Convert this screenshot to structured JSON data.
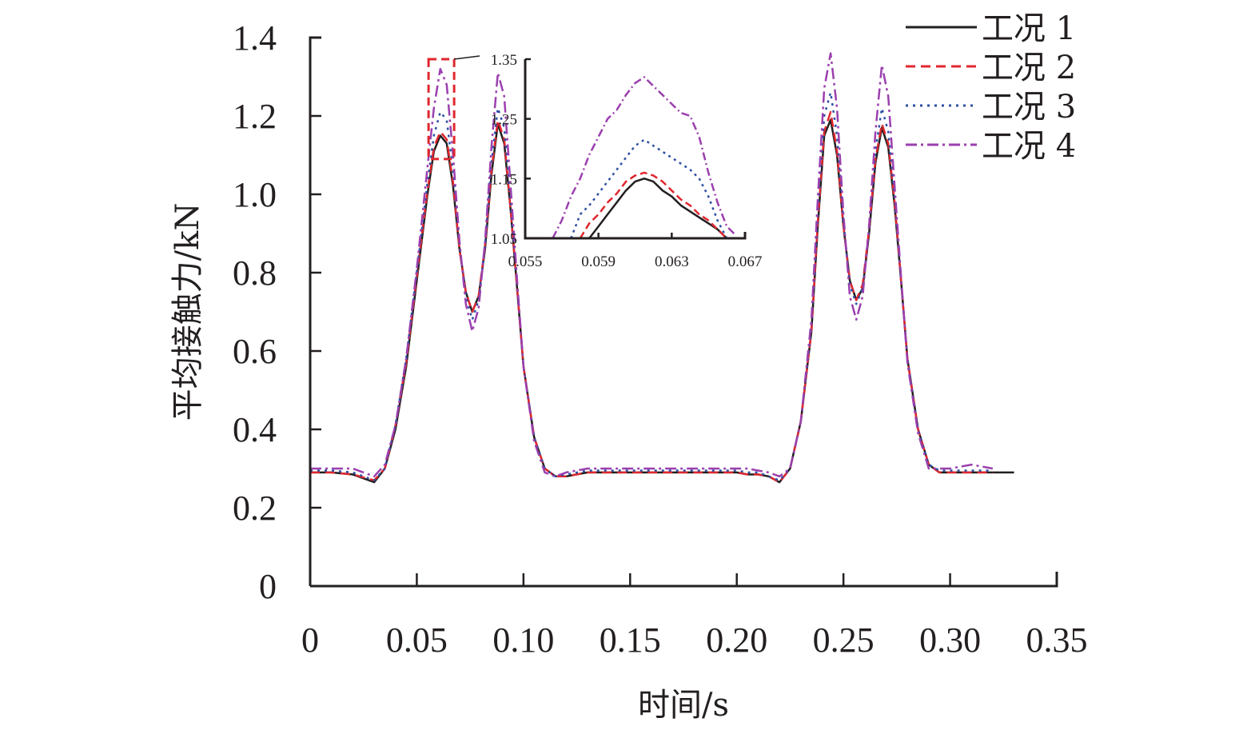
{
  "chart_data": {
    "type": "line",
    "title": "",
    "xlabel": "时间/s",
    "ylabel": "平均接触力/kN",
    "xlim": [
      0,
      0.35
    ],
    "ylim": [
      0,
      1.4
    ],
    "x_ticks": [
      "0",
      "0.05",
      "0.10",
      "0.15",
      "0.20",
      "0.25",
      "0.30",
      "0.35"
    ],
    "x_tick_values": [
      0,
      0.05,
      0.1,
      0.15,
      0.2,
      0.25,
      0.3,
      0.35
    ],
    "y_ticks": [
      "0",
      "0.2",
      "0.4",
      "0.6",
      "0.8",
      "1.0",
      "1.2",
      "1.4"
    ],
    "y_tick_values": [
      0,
      0.2,
      0.4,
      0.6,
      0.8,
      1.0,
      1.2,
      1.4
    ],
    "grid": false,
    "legend_position": "top-right",
    "series": [
      {
        "name": "工况 1",
        "color": "#231f20",
        "dash": "solid",
        "x": [
          0,
          0.01,
          0.02,
          0.03,
          0.035,
          0.04,
          0.045,
          0.05,
          0.055,
          0.058,
          0.061,
          0.064,
          0.067,
          0.07,
          0.073,
          0.076,
          0.079,
          0.082,
          0.085,
          0.088,
          0.091,
          0.094,
          0.097,
          0.1,
          0.105,
          0.11,
          0.115,
          0.12,
          0.13,
          0.15,
          0.18,
          0.2,
          0.205,
          0.21,
          0.215,
          0.22,
          0.225,
          0.23,
          0.235,
          0.238,
          0.241,
          0.244,
          0.247,
          0.25,
          0.253,
          0.256,
          0.259,
          0.262,
          0.265,
          0.268,
          0.271,
          0.274,
          0.277,
          0.28,
          0.285,
          0.29,
          0.295,
          0.3,
          0.31,
          0.32,
          0.33
        ],
        "y": [
          0.29,
          0.29,
          0.285,
          0.265,
          0.3,
          0.4,
          0.56,
          0.78,
          1.0,
          1.11,
          1.15,
          1.13,
          1.02,
          0.86,
          0.75,
          0.7,
          0.74,
          0.86,
          1.05,
          1.18,
          1.13,
          0.96,
          0.76,
          0.56,
          0.38,
          0.3,
          0.28,
          0.28,
          0.29,
          0.29,
          0.29,
          0.29,
          0.285,
          0.285,
          0.28,
          0.265,
          0.3,
          0.42,
          0.65,
          0.92,
          1.15,
          1.19,
          1.1,
          0.92,
          0.78,
          0.73,
          0.76,
          0.9,
          1.08,
          1.17,
          1.12,
          0.97,
          0.78,
          0.58,
          0.4,
          0.31,
          0.29,
          0.29,
          0.29,
          0.29,
          0.29
        ]
      },
      {
        "name": "工况 2",
        "color": "#e0272e",
        "dash": "dashed",
        "x": [
          0,
          0.01,
          0.02,
          0.03,
          0.035,
          0.04,
          0.045,
          0.05,
          0.055,
          0.058,
          0.061,
          0.064,
          0.067,
          0.07,
          0.073,
          0.076,
          0.079,
          0.082,
          0.085,
          0.088,
          0.091,
          0.094,
          0.097,
          0.1,
          0.105,
          0.11,
          0.115,
          0.12,
          0.13,
          0.15,
          0.18,
          0.2,
          0.205,
          0.21,
          0.215,
          0.22,
          0.225,
          0.23,
          0.235,
          0.238,
          0.241,
          0.244,
          0.247,
          0.25,
          0.253,
          0.256,
          0.259,
          0.262,
          0.265,
          0.268,
          0.271,
          0.274,
          0.277,
          0.28,
          0.285,
          0.29,
          0.295,
          0.3,
          0.31,
          0.32
        ],
        "y": [
          0.29,
          0.29,
          0.285,
          0.27,
          0.3,
          0.41,
          0.57,
          0.79,
          1.01,
          1.12,
          1.16,
          1.14,
          1.03,
          0.86,
          0.75,
          0.7,
          0.74,
          0.87,
          1.06,
          1.19,
          1.14,
          0.96,
          0.76,
          0.56,
          0.38,
          0.3,
          0.28,
          0.28,
          0.29,
          0.29,
          0.29,
          0.29,
          0.285,
          0.285,
          0.28,
          0.265,
          0.3,
          0.42,
          0.65,
          0.93,
          1.16,
          1.21,
          1.11,
          0.92,
          0.78,
          0.73,
          0.77,
          0.91,
          1.09,
          1.18,
          1.13,
          0.98,
          0.78,
          0.58,
          0.4,
          0.31,
          0.29,
          0.29,
          0.29,
          0.29
        ]
      },
      {
        "name": "工况 3",
        "color": "#2e4fa3",
        "dash": "dotted",
        "x": [
          0,
          0.01,
          0.02,
          0.03,
          0.035,
          0.04,
          0.045,
          0.05,
          0.055,
          0.058,
          0.061,
          0.064,
          0.067,
          0.07,
          0.073,
          0.076,
          0.079,
          0.082,
          0.085,
          0.088,
          0.091,
          0.094,
          0.097,
          0.1,
          0.105,
          0.11,
          0.115,
          0.12,
          0.13,
          0.15,
          0.18,
          0.2,
          0.205,
          0.21,
          0.215,
          0.22,
          0.225,
          0.23,
          0.235,
          0.238,
          0.241,
          0.244,
          0.247,
          0.25,
          0.253,
          0.256,
          0.259,
          0.262,
          0.265,
          0.268,
          0.271,
          0.274,
          0.277,
          0.28,
          0.285,
          0.29,
          0.295,
          0.3,
          0.31,
          0.32
        ],
        "y": [
          0.295,
          0.295,
          0.29,
          0.27,
          0.3,
          0.41,
          0.58,
          0.8,
          1.03,
          1.15,
          1.21,
          1.19,
          1.06,
          0.87,
          0.74,
          0.68,
          0.73,
          0.87,
          1.08,
          1.22,
          1.17,
          0.98,
          0.77,
          0.56,
          0.38,
          0.3,
          0.28,
          0.285,
          0.295,
          0.295,
          0.295,
          0.295,
          0.29,
          0.29,
          0.28,
          0.27,
          0.3,
          0.42,
          0.66,
          0.95,
          1.2,
          1.26,
          1.15,
          0.93,
          0.77,
          0.72,
          0.76,
          0.91,
          1.11,
          1.22,
          1.16,
          0.99,
          0.78,
          0.58,
          0.4,
          0.31,
          0.295,
          0.295,
          0.295,
          0.295
        ]
      },
      {
        "name": "工况 4",
        "color": "#9b3fae",
        "dash": "dashdot",
        "x": [
          0,
          0.01,
          0.02,
          0.03,
          0.035,
          0.04,
          0.045,
          0.05,
          0.055,
          0.058,
          0.061,
          0.064,
          0.067,
          0.07,
          0.073,
          0.076,
          0.079,
          0.082,
          0.085,
          0.088,
          0.091,
          0.094,
          0.097,
          0.1,
          0.105,
          0.11,
          0.115,
          0.12,
          0.13,
          0.15,
          0.18,
          0.2,
          0.205,
          0.21,
          0.215,
          0.22,
          0.225,
          0.23,
          0.235,
          0.238,
          0.241,
          0.244,
          0.247,
          0.25,
          0.253,
          0.256,
          0.259,
          0.262,
          0.265,
          0.268,
          0.271,
          0.274,
          0.277,
          0.28,
          0.285,
          0.29,
          0.295,
          0.3,
          0.31,
          0.32
        ],
        "y": [
          0.3,
          0.3,
          0.3,
          0.28,
          0.31,
          0.41,
          0.58,
          0.81,
          1.07,
          1.22,
          1.32,
          1.28,
          1.1,
          0.88,
          0.72,
          0.65,
          0.71,
          0.88,
          1.12,
          1.31,
          1.25,
          1.02,
          0.78,
          0.56,
          0.37,
          0.29,
          0.28,
          0.29,
          0.3,
          0.3,
          0.3,
          0.3,
          0.3,
          0.295,
          0.29,
          0.28,
          0.3,
          0.42,
          0.68,
          0.99,
          1.27,
          1.36,
          1.22,
          0.95,
          0.74,
          0.68,
          0.74,
          0.92,
          1.16,
          1.33,
          1.25,
          1.02,
          0.79,
          0.57,
          0.39,
          0.3,
          0.3,
          0.3,
          0.31,
          0.3
        ]
      }
    ],
    "zoom_box": {
      "xlim": [
        0.0555,
        0.0675
      ],
      "ylim": [
        1.09,
        1.345
      ],
      "color": "#e0272e",
      "style": "dashed"
    },
    "inset": {
      "type": "line",
      "xlim": [
        0.055,
        0.067
      ],
      "ylim": [
        1.05,
        1.35
      ],
      "x_ticks": [
        "0.055",
        "0.059",
        "0.063",
        "0.067"
      ],
      "x_tick_values": [
        0.055,
        0.059,
        0.063,
        0.067
      ],
      "y_ticks": [
        "1.05",
        "1.15",
        "1.25",
        "1.35"
      ],
      "y_tick_values": [
        1.05,
        1.15,
        1.25,
        1.35
      ],
      "series": [
        {
          "name": "工况 1",
          "x": [
            0.0585,
            0.059,
            0.0595,
            0.06,
            0.0605,
            0.061,
            0.0615,
            0.062,
            0.0625,
            0.063,
            0.0635,
            0.064,
            0.0645,
            0.065,
            0.0655,
            0.066
          ],
          "y": [
            1.05,
            1.07,
            1.09,
            1.11,
            1.13,
            1.145,
            1.15,
            1.145,
            1.13,
            1.12,
            1.105,
            1.095,
            1.085,
            1.075,
            1.065,
            1.05
          ]
        },
        {
          "name": "工况 2",
          "x": [
            0.058,
            0.0585,
            0.059,
            0.0595,
            0.06,
            0.0605,
            0.061,
            0.0615,
            0.062,
            0.0625,
            0.063,
            0.0635,
            0.064,
            0.0645,
            0.065,
            0.0655,
            0.066
          ],
          "y": [
            1.05,
            1.075,
            1.09,
            1.11,
            1.125,
            1.145,
            1.155,
            1.16,
            1.155,
            1.145,
            1.13,
            1.115,
            1.105,
            1.09,
            1.08,
            1.065,
            1.05
          ]
        },
        {
          "name": "工况 3",
          "x": [
            0.0575,
            0.058,
            0.0585,
            0.059,
            0.0595,
            0.06,
            0.0605,
            0.061,
            0.0615,
            0.062,
            0.0625,
            0.063,
            0.0635,
            0.064,
            0.0645,
            0.065,
            0.0655,
            0.066
          ],
          "y": [
            1.05,
            1.09,
            1.105,
            1.125,
            1.145,
            1.165,
            1.185,
            1.205,
            1.215,
            1.205,
            1.195,
            1.185,
            1.175,
            1.165,
            1.15,
            1.12,
            1.08,
            1.05
          ]
        },
        {
          "name": "工况 4",
          "x": [
            0.0565,
            0.057,
            0.0575,
            0.058,
            0.0585,
            0.059,
            0.0595,
            0.06,
            0.0605,
            0.061,
            0.0615,
            0.062,
            0.0625,
            0.063,
            0.0635,
            0.064,
            0.0645,
            0.065,
            0.0655,
            0.066,
            0.0665
          ],
          "y": [
            1.05,
            1.08,
            1.12,
            1.15,
            1.19,
            1.22,
            1.25,
            1.265,
            1.29,
            1.31,
            1.32,
            1.305,
            1.29,
            1.275,
            1.26,
            1.255,
            1.22,
            1.16,
            1.11,
            1.07,
            1.055
          ]
        }
      ]
    }
  }
}
